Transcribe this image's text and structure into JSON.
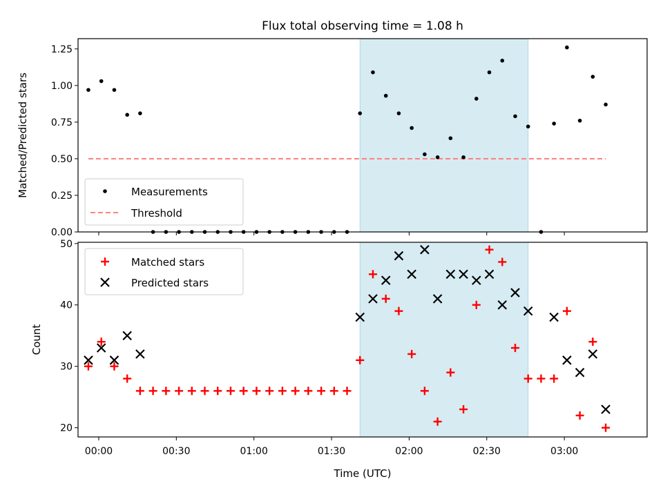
{
  "title": "Flux total observing time = 1.08 h",
  "colors": {
    "measurement": "#000000",
    "threshold": "#ff7f7f",
    "matched": "#ff0000",
    "predicted": "#000000",
    "span": "#add8e6"
  },
  "chart_data": [
    {
      "type": "scatter",
      "panel": "top",
      "ylabel": "Matched/Predicted stars",
      "xlim": [
        -8,
        212
      ],
      "ylim": [
        0,
        1.32
      ],
      "yticks": [
        0.0,
        0.25,
        0.5,
        0.75,
        1.0,
        1.25
      ],
      "ytick_labels": [
        "0.00",
        "0.25",
        "0.50",
        "0.75",
        "1.00",
        "1.25"
      ],
      "grid": false,
      "legend_position": "lower-left",
      "shaded_span": [
        101,
        166
      ],
      "series": [
        {
          "name": "Measurements",
          "marker": "dot",
          "points": [
            [
              -4,
              0.97
            ],
            [
              1,
              1.03
            ],
            [
              6,
              0.97
            ],
            [
              11,
              0.8
            ],
            [
              16,
              0.81
            ],
            [
              21,
              0.0
            ],
            [
              26,
              0.0
            ],
            [
              31,
              0.0
            ],
            [
              36,
              0.0
            ],
            [
              41,
              0.0
            ],
            [
              46,
              0.0
            ],
            [
              51,
              0.0
            ],
            [
              56,
              0.0
            ],
            [
              61,
              0.0
            ],
            [
              66,
              0.0
            ],
            [
              71,
              0.0
            ],
            [
              76,
              0.0
            ],
            [
              81,
              0.0
            ],
            [
              86,
              0.0
            ],
            [
              91,
              0.0
            ],
            [
              96,
              0.0
            ],
            [
              101,
              0.81
            ],
            [
              106,
              1.09
            ],
            [
              111,
              0.93
            ],
            [
              116,
              0.81
            ],
            [
              121,
              0.71
            ],
            [
              126,
              0.53
            ],
            [
              131,
              0.51
            ],
            [
              136,
              0.64
            ],
            [
              141,
              0.51
            ],
            [
              146,
              0.91
            ],
            [
              151,
              1.09
            ],
            [
              156,
              1.17
            ],
            [
              161,
              0.79
            ],
            [
              166,
              0.72
            ],
            [
              171,
              0.0
            ],
            [
              176,
              0.74
            ],
            [
              181,
              1.26
            ],
            [
              186,
              0.76
            ],
            [
              191,
              1.06
            ],
            [
              196,
              0.87
            ]
          ]
        },
        {
          "name": "Threshold",
          "style": "dashed",
          "points": [
            [
              -4,
              0.5
            ],
            [
              196,
              0.5
            ]
          ]
        }
      ]
    },
    {
      "type": "scatter",
      "panel": "bottom",
      "xlabel": "Time (UTC)",
      "ylabel": "Count",
      "xlim": [
        -8,
        212
      ],
      "ylim": [
        18.5,
        50.2
      ],
      "xticks": [
        0,
        30,
        60,
        90,
        120,
        150,
        180
      ],
      "xtick_labels": [
        "00:00",
        "00:30",
        "01:00",
        "01:30",
        "02:00",
        "02:30",
        "03:00"
      ],
      "yticks": [
        20,
        30,
        40,
        50
      ],
      "ytick_labels": [
        "20",
        "30",
        "40",
        "50"
      ],
      "grid": false,
      "legend_position": "top-left",
      "shaded_span": [
        101,
        166
      ],
      "series": [
        {
          "name": "Matched stars",
          "marker": "plus",
          "points": [
            [
              -4,
              30
            ],
            [
              1,
              34
            ],
            [
              6,
              30
            ],
            [
              11,
              28
            ],
            [
              16,
              26
            ],
            [
              21,
              26
            ],
            [
              26,
              26
            ],
            [
              31,
              26
            ],
            [
              36,
              26
            ],
            [
              41,
              26
            ],
            [
              46,
              26
            ],
            [
              51,
              26
            ],
            [
              56,
              26
            ],
            [
              61,
              26
            ],
            [
              66,
              26
            ],
            [
              71,
              26
            ],
            [
              76,
              26
            ],
            [
              81,
              26
            ],
            [
              86,
              26
            ],
            [
              91,
              26
            ],
            [
              96,
              26
            ],
            [
              101,
              31
            ],
            [
              106,
              45
            ],
            [
              111,
              41
            ],
            [
              116,
              39
            ],
            [
              121,
              32
            ],
            [
              126,
              26
            ],
            [
              131,
              21
            ],
            [
              136,
              29
            ],
            [
              141,
              23
            ],
            [
              146,
              40
            ],
            [
              151,
              49
            ],
            [
              156,
              47
            ],
            [
              161,
              33
            ],
            [
              166,
              28
            ],
            [
              171,
              28
            ],
            [
              176,
              28
            ],
            [
              181,
              39
            ],
            [
              186,
              22
            ],
            [
              191,
              34
            ],
            [
              196,
              20
            ]
          ]
        },
        {
          "name": "Predicted stars",
          "marker": "x",
          "points": [
            [
              -4,
              31
            ],
            [
              1,
              33
            ],
            [
              6,
              31
            ],
            [
              11,
              35
            ],
            [
              16,
              32
            ],
            [
              101,
              38
            ],
            [
              106,
              41
            ],
            [
              111,
              44
            ],
            [
              116,
              48
            ],
            [
              121,
              45
            ],
            [
              126,
              49
            ],
            [
              131,
              41
            ],
            [
              136,
              45
            ],
            [
              141,
              45
            ],
            [
              146,
              44
            ],
            [
              151,
              45
            ],
            [
              156,
              40
            ],
            [
              161,
              42
            ],
            [
              166,
              39
            ],
            [
              176,
              38
            ],
            [
              181,
              31
            ],
            [
              186,
              29
            ],
            [
              191,
              32
            ],
            [
              196,
              23
            ]
          ]
        }
      ]
    }
  ]
}
